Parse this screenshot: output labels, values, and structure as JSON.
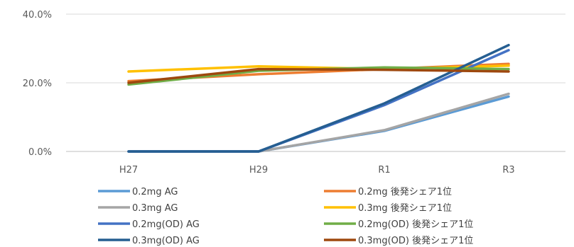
{
  "chart_data": {
    "type": "line",
    "categories": [
      "H27",
      "H29",
      "R1",
      "R3"
    ],
    "ylim": [
      0,
      40
    ],
    "yticks": [
      0,
      20,
      40
    ],
    "ytick_labels": [
      "0.0%",
      "20.0%",
      "40.0%"
    ],
    "grid": true,
    "legend_position": "bottom",
    "series": [
      {
        "name": "0.2mg AG",
        "color": "#5b9bd5",
        "values": [
          0,
          0,
          6.0,
          16.0
        ]
      },
      {
        "name": "0.2mg 後発シェア1位",
        "color": "#ed7d31",
        "values": [
          20.5,
          22.5,
          24.0,
          25.5
        ]
      },
      {
        "name": "0.3mg AG",
        "color": "#a5a5a5",
        "values": [
          0,
          0,
          6.2,
          16.8
        ]
      },
      {
        "name": "0.3mg 後発シェア1位",
        "color": "#ffc000",
        "values": [
          23.3,
          24.8,
          24.0,
          25.0
        ]
      },
      {
        "name": "0.2mg(OD) AG",
        "color": "#4472c4",
        "values": [
          0,
          0,
          13.5,
          29.5
        ]
      },
      {
        "name": "0.2mg(OD) 後発シェア1位",
        "color": "#70ad47",
        "values": [
          19.5,
          23.5,
          24.5,
          24.0
        ]
      },
      {
        "name": "0.3mg(OD) AG",
        "color": "#255e91",
        "values": [
          0,
          0,
          14.0,
          31.0
        ]
      },
      {
        "name": "0.3mg(OD) 後発シェア1位",
        "color": "#9e480e",
        "values": [
          20.0,
          24.0,
          23.8,
          23.3
        ]
      }
    ]
  }
}
